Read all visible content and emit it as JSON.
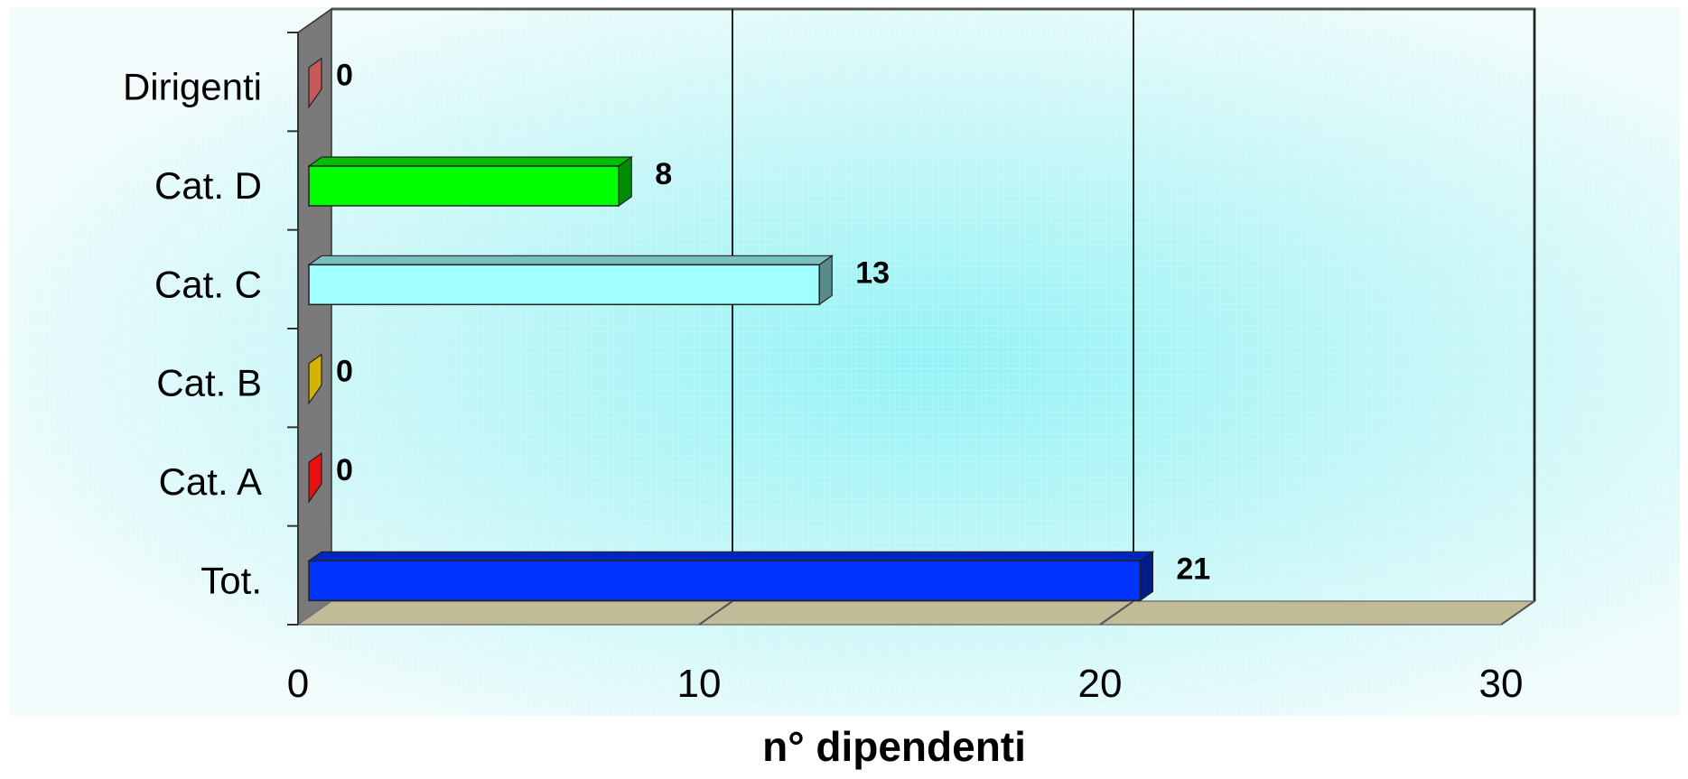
{
  "chart_data": {
    "type": "bar",
    "orientation": "horizontal",
    "three_d": true,
    "categories": [
      "Dirigenti",
      "Cat.  D",
      "Cat.  C",
      "Cat.  B",
      "Cat.  A",
      "Tot."
    ],
    "values": [
      0,
      8,
      13,
      0,
      0,
      21
    ],
    "colors": [
      "#c8585a",
      "#00ff00",
      "#a0ffff",
      "#d4b400",
      "#e81010",
      "#0033ff"
    ],
    "xlabel": "n° dipendenti",
    "xlim": [
      0,
      30
    ],
    "xticks": [
      0,
      10,
      20,
      30
    ],
    "grid": true,
    "legend": "none"
  }
}
